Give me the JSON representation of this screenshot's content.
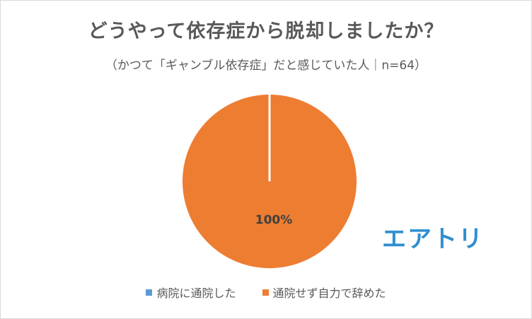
{
  "chart_data": {
    "type": "pie",
    "title": "どうやって依存症から脱却しましたか？",
    "subtitle": "（かつて「ギャンブル依存症」だと感じていた人｜n=64）",
    "categories": [
      "病院に通院した",
      "通院せず自力で辞めた"
    ],
    "values": [
      0,
      100
    ],
    "data_labels": [
      "",
      "100%"
    ],
    "colors": [
      "#5b9bd5",
      "#ed7d31"
    ],
    "legend_position": "bottom"
  },
  "logo_text": "エアトリ"
}
